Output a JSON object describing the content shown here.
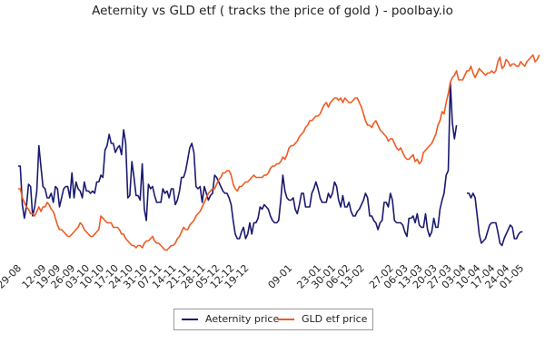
{
  "chart_data": {
    "type": "line",
    "title": "Aeternity vs GLD etf ( tracks the price of gold ) - poolbay.io",
    "xlabel": "",
    "ylabel": "",
    "x_tick_labels": [
      "29-08",
      "12-09",
      "19-09",
      "26-09",
      "03-10",
      "10-10",
      "17-10",
      "24-10",
      "31-10",
      "07-11",
      "14-11",
      "21-11",
      "28-11",
      "05-12",
      "12-12",
      "19-12",
      "09-01",
      "23-01",
      "30-01",
      "06-02",
      "13-02",
      "27-02",
      "06-03",
      "13-03",
      "20-03",
      "27-03",
      "03-04",
      "10-04",
      "17-04",
      "24-04",
      "01-05"
    ],
    "x_tick_positions": [
      0,
      12,
      19,
      26,
      33,
      40,
      47,
      54,
      61,
      68,
      75,
      82,
      89,
      96,
      103,
      110,
      131,
      145,
      152,
      159,
      166,
      180,
      187,
      194,
      201,
      208,
      215,
      222,
      229,
      236,
      243
    ],
    "legend_position": "bottom-center",
    "grid": false,
    "series": [
      {
        "name": "Aeternity price",
        "color": "#1a1a6e",
        "values": [
          42,
          42,
          25,
          19,
          24,
          34,
          33,
          20,
          24,
          31,
          51,
          42,
          33,
          32,
          28,
          28,
          30,
          26,
          33,
          32,
          24,
          28,
          32,
          33,
          33,
          28,
          39,
          28,
          35,
          32,
          31,
          28,
          35,
          31,
          31,
          30,
          31,
          30,
          35,
          35,
          38,
          37,
          49,
          51,
          56,
          52,
          52,
          48,
          50,
          51,
          47,
          58,
          52,
          28,
          29,
          44,
          37,
          29,
          29,
          27,
          43,
          23,
          18,
          34,
          32,
          33,
          29,
          26,
          26,
          26,
          32,
          30,
          31,
          28,
          32,
          32,
          25,
          27,
          31,
          37,
          37,
          40,
          45,
          50,
          52,
          48,
          33,
          32,
          33,
          26,
          33,
          30,
          27,
          29,
          30,
          38,
          37,
          35,
          33,
          31,
          30,
          30,
          28,
          25,
          18,
          12,
          10,
          10,
          13,
          15,
          10,
          12,
          17,
          12,
          17,
          17,
          19,
          24,
          23,
          25,
          24,
          23,
          20,
          18,
          17,
          17,
          18,
          27,
          38,
          31,
          28,
          27,
          27,
          28,
          23,
          21,
          25,
          30,
          30,
          24,
          24,
          24,
          30,
          32,
          35,
          32,
          28,
          26,
          26,
          26,
          30,
          28,
          30,
          35,
          33,
          27,
          24,
          29,
          24,
          24,
          26,
          22,
          20,
          20,
          22,
          23,
          25,
          27,
          30,
          28,
          20,
          20,
          18,
          17,
          14,
          17,
          18,
          26,
          26,
          24,
          30,
          27,
          18,
          17,
          17,
          17,
          16,
          13,
          11,
          19,
          19,
          20,
          17,
          21,
          16,
          15,
          15,
          21,
          14,
          11,
          13,
          19,
          15,
          15,
          23,
          27,
          30,
          38,
          40,
          79,
          61,
          54,
          60
        ],
        "gaps": [
          [
            210,
            213
          ]
        ],
        "values_after_gap": [
          30,
          30,
          28,
          30,
          28,
          20,
          12,
          8,
          9,
          10,
          13,
          16,
          17,
          17,
          17,
          13,
          8,
          7,
          10,
          12,
          14,
          16,
          15,
          10,
          10,
          12,
          13,
          13
        ]
      },
      {
        "name": "GLD etf price",
        "color": "#f05a22",
        "values": [
          32,
          32,
          28,
          26,
          24,
          23,
          21,
          21,
          20,
          22,
          24,
          22,
          24,
          24,
          26,
          25,
          23,
          22,
          19,
          16,
          14,
          14,
          13,
          12,
          11,
          11,
          12,
          13,
          14,
          15,
          17,
          16,
          14,
          13,
          12,
          11,
          11,
          12,
          13,
          14,
          20,
          19,
          18,
          17,
          17,
          17,
          15,
          15,
          15,
          14,
          12,
          12,
          10,
          9,
          8,
          7,
          7,
          6,
          7,
          7,
          6,
          8,
          9,
          9,
          10,
          11,
          9,
          8,
          8,
          7,
          6,
          5,
          5,
          6,
          7,
          7,
          8,
          10,
          11,
          13,
          15,
          14,
          14,
          16,
          17,
          18,
          20,
          21,
          22,
          24,
          26,
          28,
          30,
          31,
          32,
          32,
          34,
          36,
          37,
          39,
          39,
          40,
          40,
          38,
          34,
          32,
          31,
          33,
          33,
          34,
          35,
          35,
          36,
          37,
          38,
          37,
          37,
          37,
          37,
          38,
          38,
          39,
          41,
          42,
          42,
          43,
          43,
          44,
          46,
          45,
          47,
          50,
          51,
          51,
          52,
          53,
          55,
          56,
          57,
          59,
          60,
          62,
          62,
          63,
          64,
          64,
          65,
          67,
          69,
          70,
          68,
          70,
          71,
          72,
          72,
          71,
          72,
          70,
          72,
          71,
          70,
          70,
          71,
          72,
          72,
          70,
          68,
          65,
          62,
          60,
          60,
          59,
          61,
          62,
          60,
          58,
          57,
          56,
          55,
          53,
          54,
          54,
          52,
          50,
          49,
          50,
          48,
          46,
          45,
          45,
          46,
          47,
          44,
          45,
          43,
          44,
          48,
          49,
          50,
          51,
          52,
          54,
          56,
          60,
          62,
          66,
          65,
          70,
          74,
          79,
          81,
          82,
          84,
          80,
          80,
          80,
          82,
          84,
          84,
          86,
          83,
          81,
          83,
          85,
          84,
          83,
          82,
          83,
          83,
          84,
          83,
          84,
          88,
          90,
          85,
          86,
          89,
          88,
          86,
          87,
          87,
          86,
          86,
          88,
          87,
          86,
          88,
          89,
          90,
          91,
          88,
          89,
          91
        ]
      }
    ],
    "ylim": [
      0,
      100
    ]
  },
  "legend": {
    "aeternity_label": "Aeternity price",
    "gld_label": "GLD etf price"
  },
  "colors": {
    "aeternity": "#1a1a6e",
    "gld": "#f05a22"
  }
}
